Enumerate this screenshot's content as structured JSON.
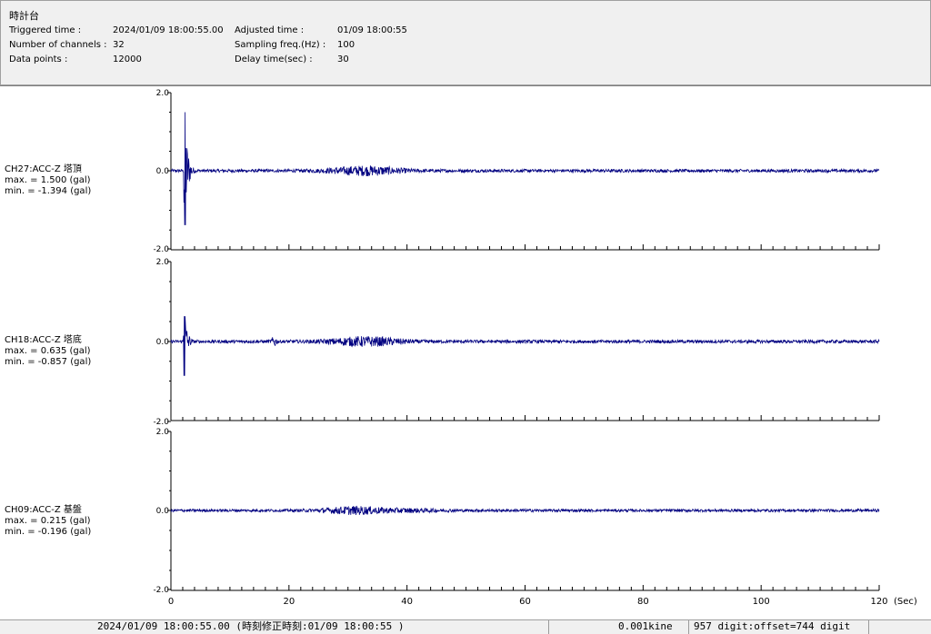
{
  "header": {
    "title": "時計台",
    "triggered_label": "Triggered time :",
    "triggered_value": "2024/01/09 18:00:55.00",
    "channels_label": "Number of channels :",
    "channels_value": "32",
    "points_label": "Data points :",
    "points_value": "12000",
    "adjusted_label": "Adjusted time :",
    "adjusted_value": "01/09 18:00:55",
    "sampling_label": "Sampling freq.(Hz) :",
    "sampling_value": "100",
    "delay_label": "Delay time(sec) :",
    "delay_value": "30"
  },
  "channels": [
    {
      "name": "CH27:ACC-Z 塔頂",
      "max": "max. = 1.500 (gal)",
      "min": "min. = -1.394 (gal)"
    },
    {
      "name": "CH18:ACC-Z 塔底",
      "max": "max. = 0.635 (gal)",
      "min": "min. = -0.857 (gal)"
    },
    {
      "name": "CH09:ACC-Z 基盤",
      "max": "max. = 0.215 (gal)",
      "min": "min. = -0.196 (gal)"
    }
  ],
  "chart_data": {
    "type": "line",
    "xlabel": "(Sec)",
    "xlim": [
      0,
      120
    ],
    "x_ticks": [
      "0",
      "20",
      "40",
      "60",
      "80",
      "100",
      "120"
    ],
    "ylim": [
      -2.0,
      2.0
    ],
    "y_ticks": [
      "2.0",
      "0.0",
      "-2.0"
    ],
    "series_color": "#000080",
    "series": [
      {
        "name": "CH27:ACC-Z 塔頂",
        "max": 1.5,
        "min": -1.394,
        "peak_time": 2.4
      },
      {
        "name": "CH18:ACC-Z 塔底",
        "max": 0.635,
        "min": -0.857,
        "peak_time": 2.3
      },
      {
        "name": "CH09:ACC-Z 基盤",
        "max": 0.215,
        "min": -0.196,
        "peak_time": 31.0
      }
    ]
  },
  "status": {
    "time": "2024/01/09 18:00:55.00  (時刻修正時刻:01/09 18:00:55  )",
    "kine": "0.001kine",
    "digit": "957 digit:offset=744 digit"
  }
}
